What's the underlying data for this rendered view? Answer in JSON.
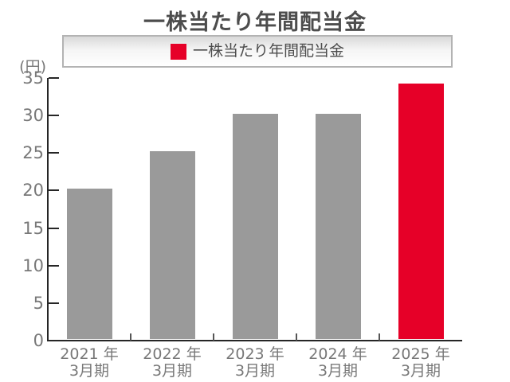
{
  "title": "一株当たり年間配当金",
  "legend": {
    "label": "一株当たり年間配当金"
  },
  "colors": {
    "bar_default": "#9a9a9a",
    "bar_highlight": "#e60028",
    "axis": "#262626",
    "tick_label": "#787878",
    "heading_text": "#4d4d4d",
    "legend_border": "#b3b3b3"
  },
  "chart_data": {
    "type": "bar",
    "title": "一株当たり年間配当金",
    "categories": [
      "2021 年\n3月期",
      "2022 年\n3月期",
      "2023 年\n3月期",
      "2024 年\n3月期",
      "2025 年\n3月期"
    ],
    "values": [
      20,
      25,
      30,
      30,
      34
    ],
    "xlabel": "",
    "ylabel": "(円)",
    "ylim": [
      0,
      35
    ],
    "ytick_step": 5,
    "yticks": [
      0,
      5,
      10,
      15,
      20,
      25,
      30,
      35
    ],
    "legend": [
      "一株当たり年間配当金"
    ],
    "legend_position": "top",
    "grid": false,
    "highlight_index": 4
  }
}
